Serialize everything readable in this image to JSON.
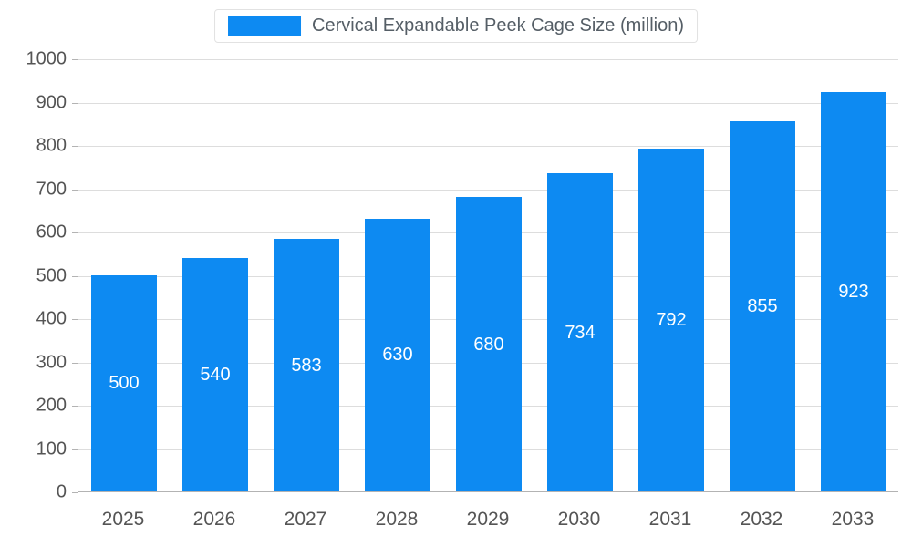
{
  "legend": {
    "label": "Cervical Expandable Peek Cage Size (million)",
    "swatch_color": "#0d8af2"
  },
  "chart_data": {
    "type": "bar",
    "title": "Cervical Expandable Peek Cage Size (million)",
    "categories": [
      "2025",
      "2026",
      "2027",
      "2028",
      "2029",
      "2030",
      "2031",
      "2032",
      "2033"
    ],
    "values": [
      500,
      540,
      583,
      630,
      680,
      734,
      792,
      855,
      923
    ],
    "xlabel": "",
    "ylabel": "",
    "ylim": [
      0,
      1000
    ],
    "ytick_step": 100,
    "grid": true,
    "legend_position": "top",
    "bar_color": "#0d8af2",
    "value_label_color": "#ffffff",
    "axis_color": "#b3b3b3",
    "grid_color": "#dddddd",
    "tick_label_color": "#555555"
  }
}
